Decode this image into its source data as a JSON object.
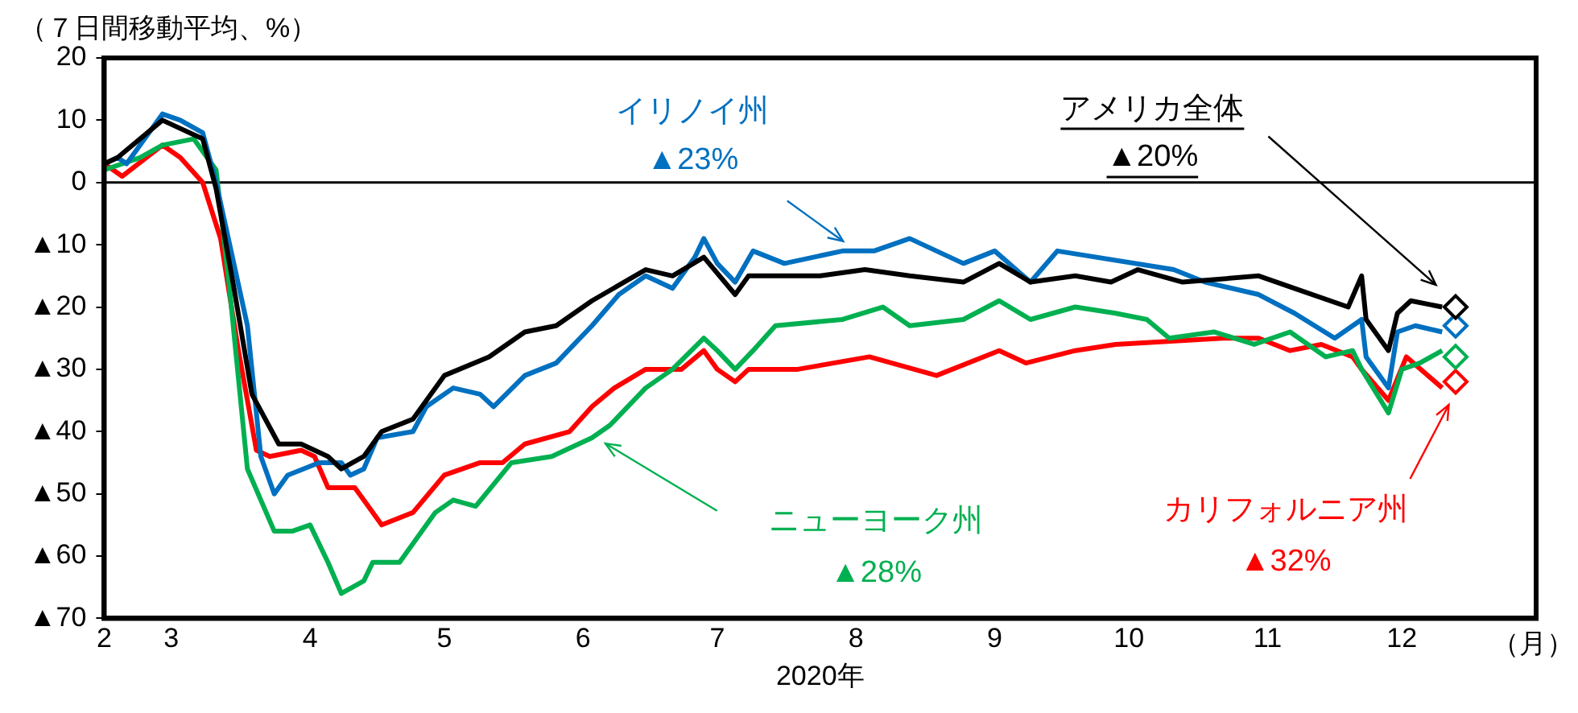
{
  "chart_data": {
    "type": "line",
    "ylabel": "（７日間移動平均、%）",
    "xlabel": "2020年",
    "xlim": [
      "2020-02-15",
      "2020-12-31"
    ],
    "xticks": [
      {
        "value": "2020-02-15",
        "label": "2"
      },
      {
        "value": "2020-03-01",
        "label": "3"
      },
      {
        "value": "2020-04-01",
        "label": "4"
      },
      {
        "value": "2020-05-01",
        "label": "5"
      },
      {
        "value": "2020-06-01",
        "label": "6"
      },
      {
        "value": "2020-07-01",
        "label": "7"
      },
      {
        "value": "2020-08-01",
        "label": "8"
      },
      {
        "value": "2020-09-01",
        "label": "9"
      },
      {
        "value": "2020-10-01",
        "label": "10"
      },
      {
        "value": "2020-11-01",
        "label": "11"
      },
      {
        "value": "2020-12-01",
        "label": "12"
      }
    ],
    "ylim": [
      -70,
      20
    ],
    "yticks": [
      20,
      10,
      0,
      {
        "value": -10,
        "label": "▲10"
      },
      {
        "value": -20,
        "label": "▲20"
      },
      {
        "value": -30,
        "label": "▲30"
      },
      {
        "value": -40,
        "label": "▲40"
      },
      {
        "value": -50,
        "label": "▲50"
      },
      {
        "value": -60,
        "label": "▲60"
      },
      {
        "value": -70,
        "label": "▲70"
      }
    ],
    "grid": false,
    "legend": false,
    "marker": "none",
    "line_style": "solid",
    "ref_lines": [
      {
        "axis": "y",
        "value": 0,
        "color": "#000000"
      }
    ],
    "series": [
      {
        "name": "アメリカ全体",
        "color": "#000000",
        "x": [
          "2020-02-15",
          "2020-02-18",
          "2020-02-28",
          "2020-03-08",
          "2020-03-11",
          "2020-03-15",
          "2020-03-19",
          "2020-03-25",
          "2020-03-30",
          "2020-04-05",
          "2020-04-08",
          "2020-04-13",
          "2020-04-17",
          "2020-04-24",
          "2020-05-01",
          "2020-05-11",
          "2020-05-19",
          "2020-05-26",
          "2020-06-03",
          "2020-06-15",
          "2020-06-21",
          "2020-06-28",
          "2020-07-05",
          "2020-07-08",
          "2020-07-24",
          "2020-08-03",
          "2020-08-13",
          "2020-08-25",
          "2020-09-02",
          "2020-09-09",
          "2020-09-19",
          "2020-09-27",
          "2020-10-03",
          "2020-10-13",
          "2020-10-30",
          "2020-11-07",
          "2020-11-19",
          "2020-11-22",
          "2020-11-23",
          "2020-11-28",
          "2020-11-30",
          "2020-12-03",
          "2020-12-10"
        ],
        "values": [
          3,
          4,
          10,
          7,
          -1,
          -17,
          -34,
          -42,
          -42,
          -44,
          -46,
          -44,
          -40,
          -38,
          -31,
          -28,
          -24,
          -23,
          -19,
          -14,
          -15,
          -12,
          -18,
          -15,
          -15,
          -14,
          -15,
          -16,
          -13,
          -16,
          -15,
          -16,
          -14,
          -16,
          -15,
          -17,
          -20,
          -15,
          -22,
          -27,
          -21,
          -19,
          -20
        ]
      },
      {
        "name": "イリノイ州",
        "color": "#0070c0",
        "x": [
          "2020-02-15",
          "2020-02-18",
          "2020-02-20",
          "2020-02-28",
          "2020-03-03",
          "2020-03-08",
          "2020-03-11",
          "2020-03-18",
          "2020-03-21",
          "2020-03-24",
          "2020-03-27",
          "2020-04-03",
          "2020-04-08",
          "2020-04-10",
          "2020-04-13",
          "2020-04-16",
          "2020-04-24",
          "2020-04-27",
          "2020-05-03",
          "2020-05-09",
          "2020-05-12",
          "2020-05-19",
          "2020-05-26",
          "2020-06-03",
          "2020-06-09",
          "2020-06-15",
          "2020-06-21",
          "2020-06-26",
          "2020-06-28",
          "2020-07-01",
          "2020-07-05",
          "2020-07-09",
          "2020-07-16",
          "2020-07-29",
          "2020-08-05",
          "2020-08-13",
          "2020-08-25",
          "2020-09-01",
          "2020-09-09",
          "2020-09-15",
          "2020-10-11",
          "2020-10-18",
          "2020-10-30",
          "2020-11-07",
          "2020-11-16",
          "2020-11-22",
          "2020-11-23",
          "2020-11-28",
          "2020-11-30",
          "2020-12-04",
          "2020-12-10"
        ],
        "values": [
          3,
          4,
          3,
          11,
          10,
          8,
          0,
          -23,
          -44,
          -50,
          -47,
          -45,
          -45,
          -47,
          -46,
          -41,
          -40,
          -36,
          -33,
          -34,
          -36,
          -31,
          -29,
          -23,
          -18,
          -15,
          -17,
          -12,
          -9,
          -13,
          -16,
          -11,
          -13,
          -11,
          -11,
          -9,
          -13,
          -11,
          -16,
          -11,
          -14,
          -16,
          -18,
          -21,
          -25,
          -22,
          -28,
          -33,
          -24,
          -23,
          -24
        ]
      },
      {
        "name": "ニューヨーク州",
        "color": "#00b050",
        "x": [
          "2020-02-15",
          "2020-02-23",
          "2020-02-28",
          "2020-03-06",
          "2020-03-11",
          "2020-03-14",
          "2020-03-18",
          "2020-03-24",
          "2020-03-28",
          "2020-04-01",
          "2020-04-05",
          "2020-04-08",
          "2020-04-13",
          "2020-04-15",
          "2020-04-21",
          "2020-04-29",
          "2020-05-03",
          "2020-05-08",
          "2020-05-16",
          "2020-05-25",
          "2020-06-03",
          "2020-06-07",
          "2020-06-15",
          "2020-06-21",
          "2020-06-28",
          "2020-07-01",
          "2020-07-05",
          "2020-07-09",
          "2020-07-14",
          "2020-07-29",
          "2020-08-07",
          "2020-08-13",
          "2020-08-25",
          "2020-09-02",
          "2020-09-09",
          "2020-09-19",
          "2020-09-28",
          "2020-10-05",
          "2020-10-10",
          "2020-10-20",
          "2020-10-29",
          "2020-11-06",
          "2020-11-14",
          "2020-11-20",
          "2020-11-22",
          "2020-11-28",
          "2020-12-01",
          "2020-12-05",
          "2020-12-10"
        ],
        "values": [
          2,
          4,
          6,
          7,
          2,
          -17,
          -46,
          -56,
          -56,
          -55,
          -61,
          -66,
          -64,
          -61,
          -61,
          -53,
          -51,
          -52,
          -45,
          -44,
          -41,
          -39,
          -33,
          -30,
          -25,
          -27,
          -30,
          -27,
          -23,
          -22,
          -20,
          -23,
          -22,
          -19,
          -22,
          -20,
          -21,
          -22,
          -25,
          -24,
          -26,
          -24,
          -28,
          -27,
          -30,
          -37,
          -30,
          -29,
          -27
        ]
      },
      {
        "name": "カリフォルニア州",
        "color": "#ff0000",
        "x": [
          "2020-02-15",
          "2020-02-19",
          "2020-02-28",
          "2020-03-03",
          "2020-03-08",
          "2020-03-12",
          "2020-03-16",
          "2020-03-20",
          "2020-03-23",
          "2020-03-30",
          "2020-04-02",
          "2020-04-05",
          "2020-04-11",
          "2020-04-14",
          "2020-04-17",
          "2020-04-24",
          "2020-05-01",
          "2020-05-09",
          "2020-05-14",
          "2020-05-19",
          "2020-05-29",
          "2020-06-03",
          "2020-06-08",
          "2020-06-15",
          "2020-06-23",
          "2020-06-28",
          "2020-07-01",
          "2020-07-05",
          "2020-07-08",
          "2020-07-19",
          "2020-08-04",
          "2020-08-19",
          "2020-09-02",
          "2020-09-08",
          "2020-09-19",
          "2020-09-28",
          "2020-10-22",
          "2020-10-30",
          "2020-11-06",
          "2020-11-13",
          "2020-11-20",
          "2020-11-22",
          "2020-11-28",
          "2020-12-02",
          "2020-12-10"
        ],
        "values": [
          3,
          1,
          6,
          4,
          0,
          -9,
          -27,
          -43,
          -44,
          -43,
          -44,
          -49,
          -49,
          -52,
          -55,
          -53,
          -47,
          -45,
          -45,
          -42,
          -40,
          -36,
          -33,
          -30,
          -30,
          -27,
          -30,
          -32,
          -30,
          -30,
          -28,
          -31,
          -27,
          -29,
          -27,
          -26,
          -25,
          -25,
          -27,
          -26,
          -28,
          -30,
          -35,
          -28,
          -33
        ]
      },
      {
        "type": "scatter",
        "marker": "diamond",
        "color": "#000000",
        "x": [
          "2020-12-13"
        ],
        "values": [
          -20
        ]
      },
      {
        "type": "scatter",
        "marker": "diamond",
        "color": "#0070c0",
        "x": [
          "2020-12-13"
        ],
        "values": [
          -23
        ]
      },
      {
        "type": "scatter",
        "marker": "diamond",
        "color": "#00b050",
        "x": [
          "2020-12-13"
        ],
        "values": [
          -28
        ]
      },
      {
        "type": "scatter",
        "marker": "diamond",
        "color": "#ff0000",
        "x": [
          "2020-12-13"
        ],
        "values": [
          -32
        ]
      }
    ],
    "annotations": [
      "（月）",
      "▲20%",
      "▲23%",
      "▲28%",
      "▲32%"
    ]
  }
}
